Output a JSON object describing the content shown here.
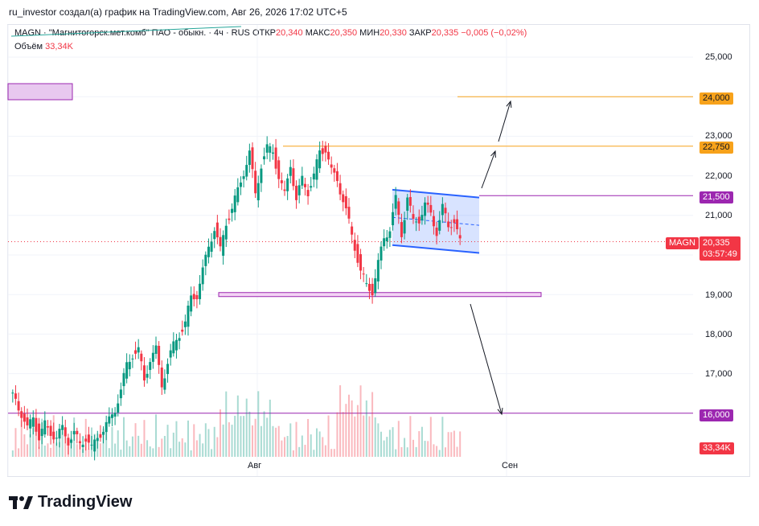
{
  "header": {
    "title": "ru_investor создал(а) график на TradingView.com, Авг 26, 2026 17:02 UTC+5"
  },
  "legend": {
    "symbol": "MAGN · \"Магнитогорск.мет.комб\" ПАО - обыкн. · 4ч · RUS",
    "open_label": "ОТКР",
    "open": "20,340",
    "high_label": "МАКС",
    "high": "20,350",
    "low_label": "МИН",
    "low": "20,330",
    "close_label": "ЗАКР",
    "close": "20,335",
    "change": "−0,005 (−0,02%)",
    "volume_label": "Объём",
    "volume": "33,34K"
  },
  "chart_data": {
    "type": "candlestick",
    "y_axis": {
      "ticks": [
        "25,000",
        "23,000",
        "22,000",
        "21,000",
        "19,000",
        "18,000",
        "17,000"
      ],
      "ylim": [
        15.0,
        25.6
      ]
    },
    "x_axis": {
      "ticks": [
        "Авг",
        "Сен"
      ]
    },
    "price_tags": [
      {
        "label": "24,000",
        "color": "#f7a21b"
      },
      {
        "label": "22,750",
        "color": "#f7a21b"
      },
      {
        "label": "21,500",
        "color": "#9c27b0"
      },
      {
        "label": "16,000",
        "color": "#9c27b0"
      }
    ],
    "last_price": {
      "symbol": "MAGN",
      "price": "20,335",
      "countdown": "03:57:49",
      "color": "#f23645"
    },
    "volume_tag": {
      "label": "33,34K",
      "color": "#f23645"
    },
    "path": [
      16.5,
      16.3,
      16.0,
      15.6,
      15.9,
      15.4,
      15.7,
      15.5,
      15.4,
      15.6,
      15.3,
      15.5,
      15.2,
      15.4,
      15.1,
      15.4,
      15.6,
      15.8,
      16.1,
      16.6,
      17.2,
      17.5,
      17.6,
      16.8,
      17.4,
      17.6,
      16.7,
      17.3,
      17.7,
      18.0,
      18.3,
      18.9,
      19.0,
      19.6,
      20.2,
      20.7,
      20.1,
      20.8,
      21.2,
      21.6,
      22.1,
      22.6,
      21.5,
      22.3,
      22.7,
      22.6,
      22.0,
      21.5,
      22.3,
      21.4,
      21.9,
      21.6,
      22.0,
      22.6,
      22.7,
      22.1,
      21.9,
      21.4,
      20.8,
      20.2,
      19.6,
      19.2,
      19.1,
      19.8,
      20.4,
      20.7,
      21.4,
      20.5,
      21.5,
      20.8,
      20.9,
      21.3,
      21.0,
      20.6,
      21.2,
      20.7,
      20.9,
      20.3
    ]
  },
  "branding": {
    "logo_text": "TradingView"
  }
}
